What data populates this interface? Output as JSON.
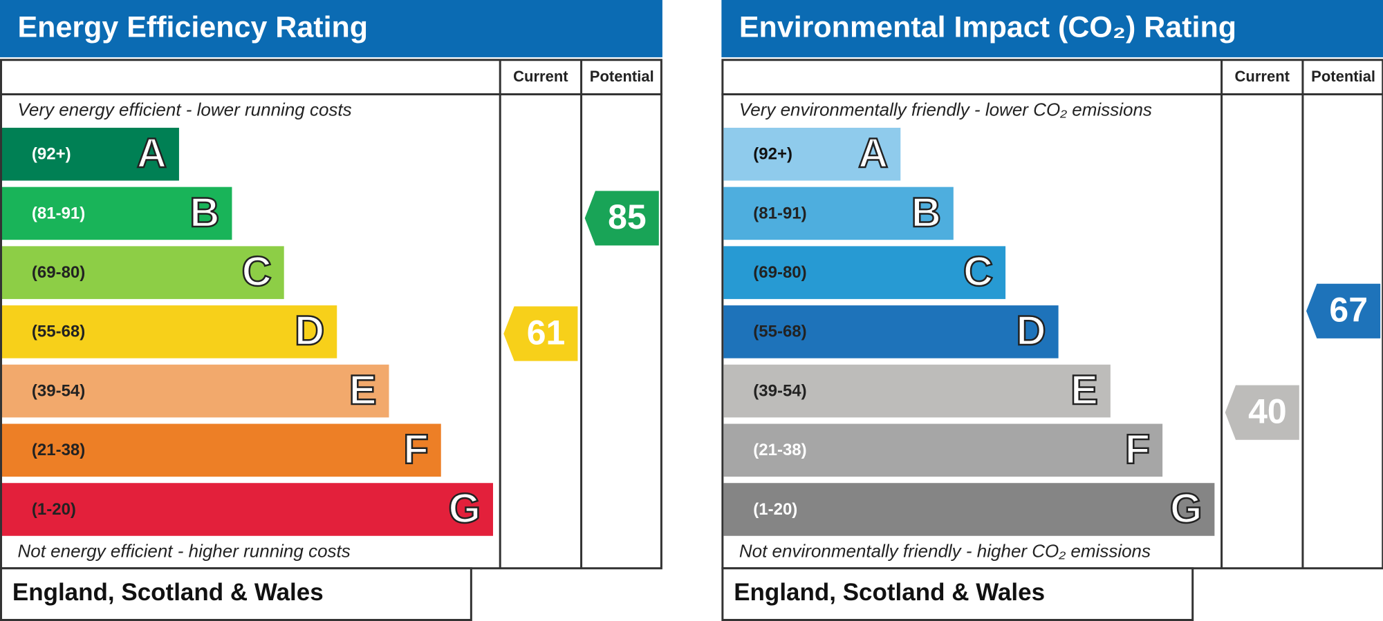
{
  "panels": [
    {
      "title": "Energy Efficiency Rating",
      "columns": [
        "Current",
        "Potential"
      ],
      "top_note": "Very energy efficient - lower running costs",
      "bottom_note": "Not energy efficient - higher running costs",
      "footer": "England, Scotland & Wales",
      "bands": [
        {
          "range": "(92+)",
          "letter": "A",
          "color": "#008054",
          "text_color": "#ffffff"
        },
        {
          "range": "(81-91)",
          "letter": "B",
          "color": "#19b459",
          "text_color": "#ffffff"
        },
        {
          "range": "(69-80)",
          "letter": "C",
          "color": "#8dce46",
          "text_color": "#222222"
        },
        {
          "range": "(55-68)",
          "letter": "D",
          "color": "#f7d01a",
          "text_color": "#222222"
        },
        {
          "range": "(39-54)",
          "letter": "E",
          "color": "#f2a96c",
          "text_color": "#222222"
        },
        {
          "range": "(21-38)",
          "letter": "F",
          "color": "#ed7f26",
          "text_color": "#222222"
        },
        {
          "range": "(1-20)",
          "letter": "G",
          "color": "#e3203b",
          "text_color": "#222222"
        }
      ],
      "current": {
        "value": 61,
        "color": "#f7d01a"
      },
      "potential": {
        "value": 85,
        "color": "#19a457"
      }
    },
    {
      "title": "Environmental Impact (CO₂) Rating",
      "columns": [
        "Current",
        "Potential"
      ],
      "top_note": "Very environmentally friendly - lower CO₂ emissions",
      "bottom_note": "Not environmentally friendly - higher CO₂ emissions",
      "footer": "England, Scotland & Wales",
      "bands": [
        {
          "range": "(92+)",
          "letter": "A",
          "color": "#8fcbec",
          "text_color": "#111111"
        },
        {
          "range": "(81-91)",
          "letter": "B",
          "color": "#4eaede",
          "text_color": "#222222"
        },
        {
          "range": "(69-80)",
          "letter": "C",
          "color": "#279ad3",
          "text_color": "#222222"
        },
        {
          "range": "(55-68)",
          "letter": "D",
          "color": "#1e73ba",
          "text_color": "#222222"
        },
        {
          "range": "(39-54)",
          "letter": "E",
          "color": "#bdbcba",
          "text_color": "#222222"
        },
        {
          "range": "(21-38)",
          "letter": "F",
          "color": "#a6a6a6",
          "text_color": "#ffffff"
        },
        {
          "range": "(1-20)",
          "letter": "G",
          "color": "#858585",
          "text_color": "#ffffff"
        }
      ],
      "current": {
        "value": 40,
        "color": "#bdbcba"
      },
      "potential": {
        "value": 67,
        "color": "#1e73ba"
      }
    }
  ]
}
